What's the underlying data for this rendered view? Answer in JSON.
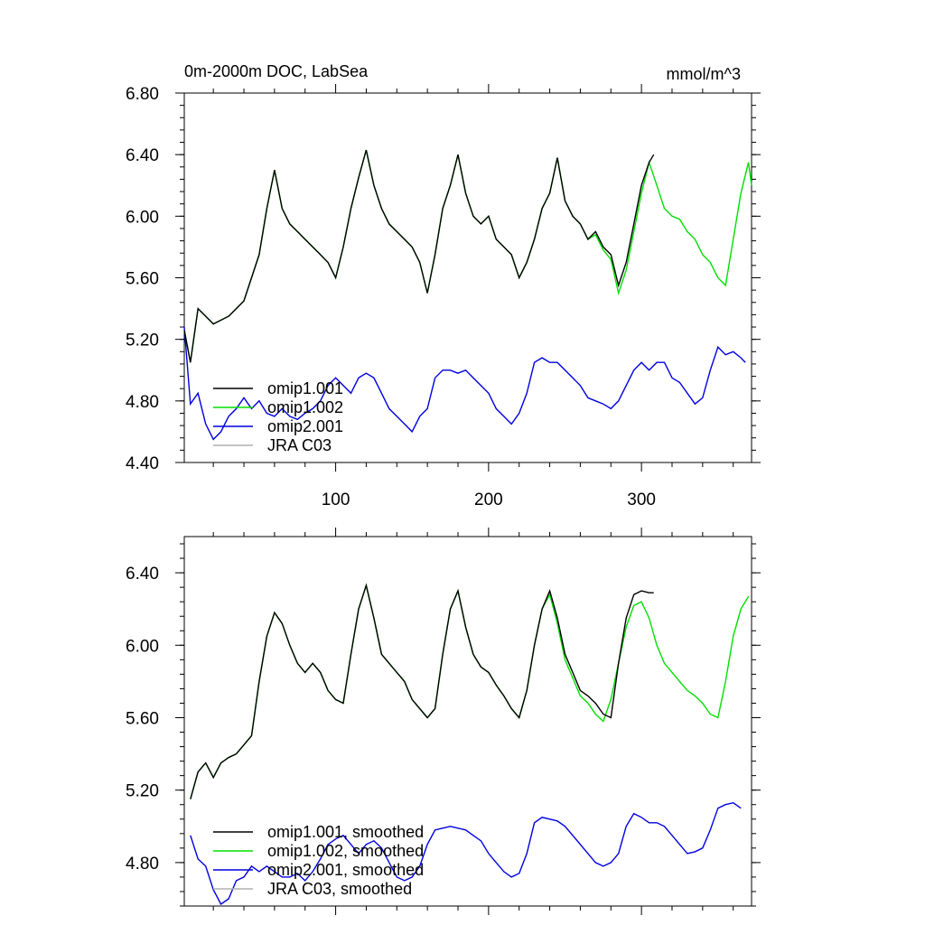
{
  "chart_data": [
    {
      "type": "line",
      "title": "0m-2000m DOC, LabSea",
      "units": "mmol/m^3",
      "xlim": [
        1,
        372
      ],
      "ylim": [
        4.4,
        6.8
      ],
      "xticks": [
        100,
        200,
        300
      ],
      "xtick_labels": [
        "100",
        "200",
        "300"
      ],
      "yticks": [
        4.4,
        4.8,
        5.2,
        5.6,
        6.0,
        6.4,
        6.8
      ],
      "ytick_labels": [
        "4.40",
        "4.80",
        "5.20",
        "5.60",
        "6.00",
        "6.40",
        "6.80"
      ],
      "legend": [
        "omip1.001",
        "omip1.002",
        "omip2.001",
        "JRA C03"
      ],
      "legend_position": "bottom-left",
      "series": [
        {
          "name": "omip1.001",
          "color": "#000000",
          "x": [
            1,
            5,
            10,
            20,
            30,
            40,
            50,
            55,
            60,
            65,
            70,
            75,
            80,
            85,
            90,
            95,
            100,
            105,
            110,
            115,
            120,
            125,
            130,
            135,
            140,
            145,
            150,
            155,
            160,
            165,
            170,
            175,
            180,
            185,
            190,
            195,
            200,
            205,
            210,
            215,
            220,
            225,
            230,
            235,
            240,
            245,
            250,
            255,
            260,
            265,
            270,
            275,
            280,
            285,
            290,
            295,
            300,
            305,
            308
          ],
          "y": [
            5.26,
            5.05,
            5.4,
            5.3,
            5.35,
            5.45,
            5.75,
            6.05,
            6.3,
            6.05,
            5.95,
            5.9,
            5.85,
            5.8,
            5.75,
            5.7,
            5.6,
            5.8,
            6.05,
            6.25,
            6.43,
            6.2,
            6.05,
            5.95,
            5.9,
            5.85,
            5.8,
            5.7,
            5.5,
            5.75,
            6.05,
            6.2,
            6.4,
            6.15,
            6.0,
            5.95,
            6.0,
            5.85,
            5.8,
            5.75,
            5.6,
            5.7,
            5.85,
            6.05,
            6.15,
            6.38,
            6.1,
            6.0,
            5.95,
            5.85,
            5.9,
            5.8,
            5.75,
            5.55,
            5.7,
            5.95,
            6.2,
            6.35,
            6.4
          ]
        },
        {
          "name": "omip1.002",
          "color": "#00e000",
          "x": [
            1,
            5,
            10,
            20,
            30,
            40,
            50,
            55,
            60,
            65,
            70,
            75,
            80,
            85,
            90,
            95,
            100,
            105,
            110,
            115,
            120,
            125,
            130,
            135,
            140,
            145,
            150,
            155,
            160,
            165,
            170,
            175,
            180,
            185,
            190,
            195,
            200,
            205,
            210,
            215,
            220,
            225,
            230,
            235,
            240,
            245,
            250,
            255,
            260,
            265,
            270,
            275,
            280,
            285,
            290,
            295,
            300,
            305,
            310,
            315,
            320,
            325,
            330,
            335,
            340,
            345,
            350,
            355,
            360,
            365,
            370,
            372
          ],
          "y": [
            5.26,
            5.05,
            5.4,
            5.3,
            5.35,
            5.45,
            5.75,
            6.05,
            6.3,
            6.05,
            5.95,
            5.9,
            5.85,
            5.8,
            5.75,
            5.7,
            5.6,
            5.8,
            6.05,
            6.25,
            6.43,
            6.2,
            6.05,
            5.95,
            5.9,
            5.85,
            5.8,
            5.7,
            5.5,
            5.75,
            6.05,
            6.2,
            6.4,
            6.15,
            6.0,
            5.95,
            6.0,
            5.85,
            5.8,
            5.75,
            5.6,
            5.7,
            5.85,
            6.05,
            6.15,
            6.38,
            6.1,
            6.0,
            5.95,
            5.85,
            5.88,
            5.78,
            5.72,
            5.5,
            5.65,
            5.9,
            6.15,
            6.35,
            6.2,
            6.05,
            6.0,
            5.98,
            5.9,
            5.85,
            5.75,
            5.7,
            5.6,
            5.55,
            5.85,
            6.15,
            6.35,
            6.2
          ]
        },
        {
          "name": "omip2.001",
          "color": "#0000e0",
          "x": [
            1,
            5,
            10,
            15,
            20,
            25,
            30,
            35,
            40,
            45,
            50,
            55,
            60,
            65,
            70,
            75,
            80,
            85,
            90,
            95,
            100,
            105,
            110,
            115,
            120,
            125,
            130,
            135,
            140,
            145,
            150,
            155,
            160,
            165,
            170,
            175,
            180,
            185,
            190,
            195,
            200,
            205,
            210,
            215,
            220,
            225,
            230,
            235,
            240,
            245,
            250,
            255,
            260,
            265,
            270,
            275,
            280,
            285,
            290,
            295,
            300,
            305,
            310,
            315,
            320,
            325,
            330,
            335,
            340,
            345,
            350,
            355,
            360,
            365,
            368
          ],
          "y": [
            5.28,
            4.78,
            4.85,
            4.65,
            4.55,
            4.6,
            4.7,
            4.75,
            4.82,
            4.75,
            4.8,
            4.72,
            4.7,
            4.75,
            4.7,
            4.68,
            4.72,
            4.75,
            4.8,
            4.9,
            4.95,
            4.9,
            4.85,
            4.95,
            4.98,
            4.95,
            4.85,
            4.75,
            4.7,
            4.65,
            4.6,
            4.7,
            4.75,
            4.95,
            5.0,
            5.0,
            4.98,
            5.0,
            4.95,
            4.9,
            4.85,
            4.75,
            4.7,
            4.65,
            4.72,
            4.85,
            5.05,
            5.08,
            5.05,
            5.05,
            5.0,
            4.95,
            4.9,
            4.82,
            4.8,
            4.78,
            4.75,
            4.8,
            4.9,
            5.0,
            5.05,
            5.0,
            5.05,
            5.05,
            4.95,
            4.92,
            4.85,
            4.78,
            4.82,
            5.0,
            5.15,
            5.1,
            5.12,
            5.08,
            5.05
          ]
        },
        {
          "name": "JRA C03",
          "color": "#b0b0b0",
          "x": [],
          "y": []
        }
      ]
    },
    {
      "type": "line",
      "title": "",
      "xlim": [
        1,
        372
      ],
      "ylim": [
        4.56,
        6.6
      ],
      "xticks": [
        100,
        200,
        300
      ],
      "xtick_labels": [
        "",
        "",
        ""
      ],
      "yticks": [
        4.8,
        5.2,
        5.6,
        6.0,
        6.4
      ],
      "ytick_labels": [
        "4.80",
        "5.20",
        "5.60",
        "6.00",
        "6.40"
      ],
      "legend": [
        "omip1.001, smoothed",
        "omip1.002, smoothed",
        "omip2.001, smoothed",
        "JRA C03, smoothed"
      ],
      "legend_position": "bottom-left",
      "series": [
        {
          "name": "omip1.001, smoothed",
          "color": "#000000",
          "x": [
            5,
            10,
            15,
            20,
            25,
            30,
            35,
            40,
            45,
            50,
            55,
            60,
            65,
            70,
            75,
            80,
            85,
            90,
            95,
            100,
            105,
            110,
            115,
            120,
            125,
            130,
            135,
            140,
            145,
            150,
            155,
            160,
            165,
            170,
            175,
            180,
            185,
            190,
            195,
            200,
            205,
            210,
            215,
            220,
            225,
            230,
            235,
            240,
            245,
            250,
            255,
            260,
            265,
            270,
            275,
            280,
            285,
            290,
            295,
            300,
            305,
            308
          ],
          "y": [
            5.15,
            5.3,
            5.35,
            5.27,
            5.35,
            5.38,
            5.4,
            5.45,
            5.5,
            5.8,
            6.05,
            6.18,
            6.12,
            6.0,
            5.9,
            5.85,
            5.9,
            5.85,
            5.75,
            5.7,
            5.68,
            5.95,
            6.2,
            6.33,
            6.15,
            5.95,
            5.9,
            5.85,
            5.8,
            5.7,
            5.65,
            5.6,
            5.65,
            5.95,
            6.2,
            6.3,
            6.1,
            5.95,
            5.88,
            5.85,
            5.78,
            5.72,
            5.65,
            5.6,
            5.75,
            6.0,
            6.2,
            6.3,
            6.15,
            5.95,
            5.85,
            5.75,
            5.72,
            5.68,
            5.62,
            5.6,
            5.9,
            6.15,
            6.28,
            6.3,
            6.29,
            6.29
          ]
        },
        {
          "name": "omip1.002, smoothed",
          "color": "#00e000",
          "x": [
            5,
            10,
            15,
            20,
            25,
            30,
            35,
            40,
            45,
            50,
            55,
            60,
            65,
            70,
            75,
            80,
            85,
            90,
            95,
            100,
            105,
            110,
            115,
            120,
            125,
            130,
            135,
            140,
            145,
            150,
            155,
            160,
            165,
            170,
            175,
            180,
            185,
            190,
            195,
            200,
            205,
            210,
            215,
            220,
            225,
            230,
            235,
            240,
            245,
            250,
            255,
            260,
            265,
            270,
            275,
            280,
            285,
            290,
            295,
            300,
            305,
            310,
            315,
            320,
            325,
            330,
            335,
            340,
            345,
            350,
            355,
            360,
            365,
            370
          ],
          "y": [
            5.15,
            5.3,
            5.35,
            5.27,
            5.35,
            5.38,
            5.4,
            5.45,
            5.5,
            5.8,
            6.05,
            6.18,
            6.12,
            6.0,
            5.9,
            5.85,
            5.9,
            5.85,
            5.75,
            5.7,
            5.68,
            5.95,
            6.2,
            6.33,
            6.15,
            5.95,
            5.9,
            5.85,
            5.8,
            5.7,
            5.65,
            5.6,
            5.65,
            5.95,
            6.2,
            6.3,
            6.1,
            5.95,
            5.88,
            5.85,
            5.78,
            5.72,
            5.65,
            5.6,
            5.75,
            6.0,
            6.2,
            6.28,
            6.12,
            5.92,
            5.82,
            5.72,
            5.68,
            5.62,
            5.58,
            5.7,
            5.9,
            6.1,
            6.22,
            6.24,
            6.15,
            6.0,
            5.9,
            5.85,
            5.8,
            5.75,
            5.72,
            5.68,
            5.62,
            5.6,
            5.8,
            6.05,
            6.2,
            6.27
          ]
        },
        {
          "name": "omip2.001, smoothed",
          "color": "#0000e0",
          "x": [
            5,
            10,
            15,
            20,
            25,
            30,
            35,
            40,
            45,
            50,
            55,
            60,
            65,
            70,
            75,
            80,
            85,
            90,
            95,
            100,
            105,
            110,
            115,
            120,
            125,
            130,
            135,
            140,
            145,
            150,
            155,
            160,
            165,
            170,
            175,
            180,
            185,
            190,
            195,
            200,
            205,
            210,
            215,
            220,
            225,
            230,
            235,
            240,
            245,
            250,
            255,
            260,
            265,
            270,
            275,
            280,
            285,
            290,
            295,
            300,
            305,
            310,
            315,
            320,
            325,
            330,
            335,
            340,
            345,
            350,
            355,
            360,
            365
          ],
          "y": [
            4.95,
            4.82,
            4.78,
            4.65,
            4.57,
            4.6,
            4.7,
            4.72,
            4.78,
            4.75,
            4.78,
            4.75,
            4.72,
            4.72,
            4.74,
            4.7,
            4.75,
            4.82,
            4.9,
            4.93,
            4.95,
            4.9,
            4.85,
            4.9,
            4.92,
            4.88,
            4.8,
            4.72,
            4.7,
            4.72,
            4.78,
            4.9,
            4.98,
            4.99,
            5.0,
            4.99,
            4.98,
            4.95,
            4.92,
            4.85,
            4.8,
            4.75,
            4.72,
            4.74,
            4.85,
            5.02,
            5.05,
            5.04,
            5.03,
            5.0,
            4.95,
            4.9,
            4.85,
            4.8,
            4.78,
            4.8,
            4.85,
            5.0,
            5.07,
            5.05,
            5.02,
            5.02,
            5.0,
            4.95,
            4.9,
            4.85,
            4.86,
            4.88,
            4.98,
            5.1,
            5.12,
            5.13,
            5.1
          ]
        },
        {
          "name": "JRA C03, smoothed",
          "color": "#b0b0b0",
          "x": [],
          "y": []
        }
      ]
    }
  ]
}
